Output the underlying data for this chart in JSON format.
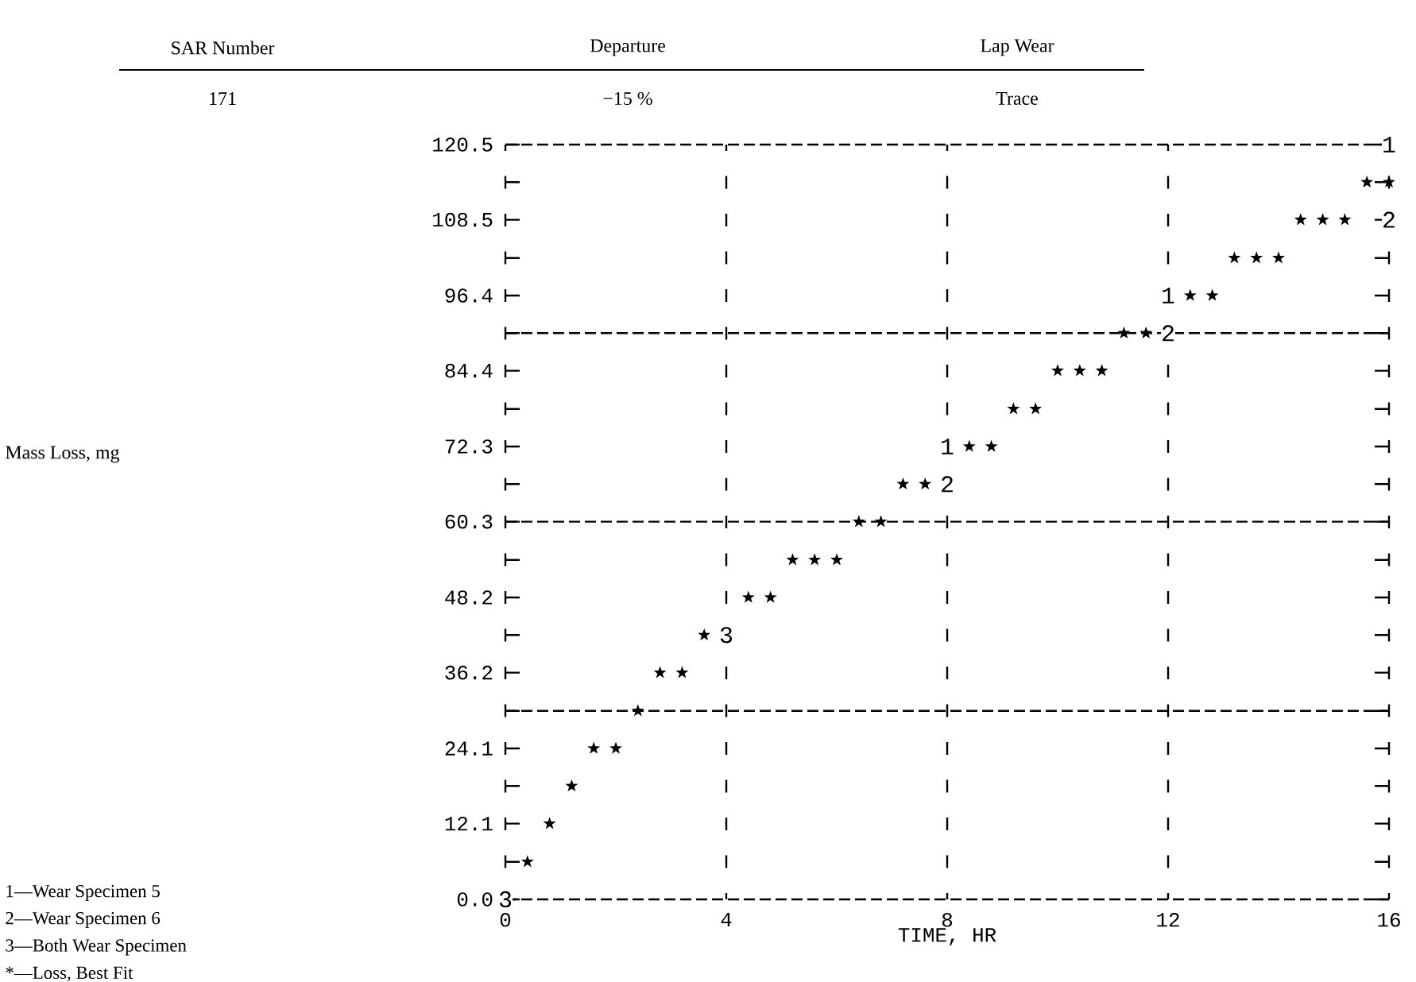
{
  "chart_data": {
    "type": "scatter",
    "xlabel": "TIME, HR",
    "xlim": [
      0,
      16
    ],
    "ylim": [
      0,
      120.5
    ],
    "xticks": [
      0,
      4,
      8,
      12,
      16
    ],
    "yticks": [
      {
        "value": 0,
        "label": "0.0"
      },
      {
        "value": 6.0,
        "label": null
      },
      12.1,
      {
        "value": 18.1,
        "label": null
      },
      24.1,
      {
        "value": 30.1,
        "label": null
      },
      36.2,
      {
        "value": 42.2,
        "label": null
      },
      48.2,
      {
        "value": 54.2,
        "label": null
      },
      60.3,
      {
        "value": 66.3,
        "label": null
      },
      72.3,
      {
        "value": 78.3,
        "label": null
      },
      84.4,
      {
        "value": 90.4,
        "label": null
      },
      96.4,
      {
        "value": 102.4,
        "label": null
      },
      108.5,
      {
        "value": 114.5,
        "label": null
      },
      120.5
    ],
    "grid": "x",
    "marker": "star",
    "ref_lines": [
      {
        "axis": "y",
        "value": 30.1,
        "line_style": "dashed"
      },
      {
        "axis": "y",
        "value": 60.3,
        "line_style": "dashed"
      },
      {
        "axis": "y",
        "value": 90.4,
        "line_style": "dashed"
      }
    ],
    "series": [
      {
        "color": "#000000",
        "x": [
          0.4,
          0.8,
          1.2,
          1.6,
          2.0,
          2.4,
          2.8,
          3.2,
          3.6,
          4.4,
          4.8,
          5.2,
          5.6,
          6.0,
          6.4,
          6.8,
          7.2,
          7.6,
          8.4,
          8.8,
          9.2,
          9.6,
          10.0,
          10.4,
          10.8,
          11.2,
          11.6,
          12.4,
          12.8,
          13.2,
          13.6,
          14.0,
          14.4,
          14.8,
          15.2,
          15.6,
          16.0
        ],
        "values": [
          6.0,
          12.1,
          18.1,
          24.1,
          24.1,
          30.1,
          36.2,
          36.2,
          42.2,
          48.2,
          48.2,
          54.2,
          54.2,
          54.2,
          60.3,
          60.3,
          66.3,
          66.3,
          72.3,
          72.3,
          78.3,
          78.3,
          84.4,
          84.4,
          84.4,
          90.4,
          90.4,
          96.4,
          96.4,
          102.4,
          102.4,
          102.4,
          108.5,
          108.5,
          108.5,
          114.5,
          114.5
        ]
      }
    ],
    "annotations": [
      "SAR Number",
      "Departure",
      "Lap Wear",
      "171",
      "−15 %",
      "Trace",
      {
        "text": "1",
        "x": 8,
        "y": 72.3
      },
      {
        "text": "1",
        "x": 12,
        "y": 96.4
      },
      {
        "text": "1",
        "x": 16,
        "y": 120.5
      },
      {
        "text": "2",
        "x": 8,
        "y": 66.3
      },
      {
        "text": "2",
        "x": 12,
        "y": 90.4
      },
      {
        "text": "2",
        "x": 16,
        "y": 108.5
      },
      {
        "text": "3",
        "x": 0,
        "y": 0
      },
      {
        "text": "3",
        "x": 4,
        "y": 42.2
      },
      "Mass Loss, mg",
      "1—Wear Specimen 5",
      "2—Wear Specimen 6",
      "3—Both Wear Specimen",
      "*—Loss, Best Fit"
    ]
  }
}
